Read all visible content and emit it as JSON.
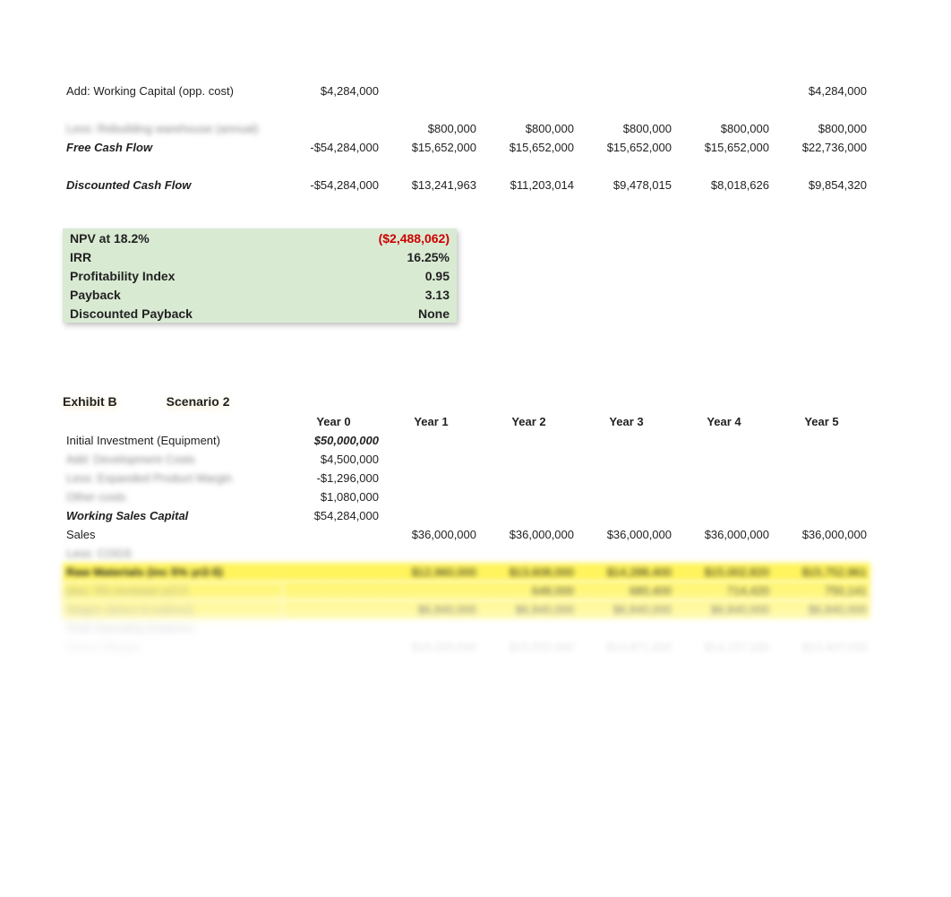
{
  "top_table": {
    "rows": [
      {
        "label": "",
        "cells": [
          "",
          "",
          "",
          "",
          "",
          ""
        ]
      },
      {
        "label": "Add: Working Capital (opp. cost)",
        "cells": [
          "$4,284,000",
          "",
          "",
          "",
          "",
          "$4,284,000"
        ]
      },
      {
        "label": "",
        "cells": [
          "",
          "",
          "",
          "",
          "",
          ""
        ]
      },
      {
        "label": "Less: Rebuilding warehouse (annual)",
        "blurred_label": true,
        "cells": [
          "",
          "$800,000",
          "$800,000",
          "$800,000",
          "$800,000",
          "$800,000"
        ]
      },
      {
        "label": "Free Cash Flow",
        "bold_italic": true,
        "cells": [
          "-$54,284,000",
          "$15,652,000",
          "$15,652,000",
          "$15,652,000",
          "$15,652,000",
          "$22,736,000"
        ]
      },
      {
        "label": "",
        "cells": [
          "",
          "",
          "",
          "",
          "",
          ""
        ]
      },
      {
        "label": "Discounted Cash Flow",
        "bold_italic": true,
        "cells": [
          "-$54,284,000",
          "$13,241,963",
          "$11,203,014",
          "$9,478,015",
          "$8,018,626",
          "$9,854,320"
        ]
      }
    ]
  },
  "metrics": [
    {
      "label": "NPV at 18.2%",
      "value": "($2,488,062)",
      "red": true
    },
    {
      "label": "IRR",
      "value": "16.25%"
    },
    {
      "label": "Profitability Index",
      "value": "0.95"
    },
    {
      "label": "Payback",
      "value": "3.13"
    },
    {
      "label": "Discounted Payback",
      "value": "None"
    }
  ],
  "exhibit": {
    "label1": "Exhibit B",
    "label2": "Scenario 2"
  },
  "year_headers": [
    "Year 0",
    "Year 1",
    "Year 2",
    "Year 3",
    "Year 4",
    "Year 5"
  ],
  "scenario2": {
    "rows": [
      {
        "label": "Initial Investment (Equipment)",
        "cells": [
          "$50,000,000",
          "",
          "",
          "",
          "",
          ""
        ],
        "y0_bold_italic": true
      },
      {
        "label": "Add: Development Costs",
        "blurred_label": true,
        "cells": [
          "$4,500,000",
          "",
          "",
          "",
          "",
          ""
        ]
      },
      {
        "label": "Less: Expanded Product Margin",
        "blurred_label": true,
        "cells": [
          "-$1,296,000",
          "",
          "",
          "",
          "",
          ""
        ]
      },
      {
        "label": "Other costs",
        "blurred_label": true,
        "cells": [
          "$1,080,000",
          "",
          "",
          "",
          "",
          ""
        ]
      },
      {
        "label": "Working Sales Capital",
        "bold_italic": true,
        "cells": [
          "$54,284,000",
          "",
          "",
          "",
          "",
          ""
        ]
      },
      {
        "label": "Sales",
        "cells": [
          "",
          "$36,000,000",
          "$36,000,000",
          "$36,000,000",
          "$36,000,000",
          "$36,000,000"
        ]
      },
      {
        "label": "Less: COGS",
        "blurred_label": true,
        "cells": [
          "",
          "",
          "",
          "",
          "",
          ""
        ]
      },
      {
        "label": "Raw Materials (inc 5% yr2-5)",
        "bold": true,
        "highlight": true,
        "cells": [
          "",
          "$12,960,000",
          "$13,608,000",
          "$14,288,400",
          "$15,002,820",
          "$15,752,961"
        ]
      },
      {
        "label": "plus: 5% increase yr2-5",
        "blurred_label": true,
        "highlight": true,
        "cells": [
          "",
          "",
          "648,000",
          "680,400",
          "714,420",
          "750,141"
        ]
      },
      {
        "label": "Wages (direct & indirect)",
        "blurred_label": true,
        "highlight": true,
        "cells": [
          "",
          "$6,840,000",
          "$6,840,000",
          "$6,840,000",
          "$6,840,000",
          "$6,840,000"
        ]
      },
      {
        "label": "Total Operating Expense",
        "blurred_label": true,
        "cells": [
          "",
          "",
          "",
          "",
          "",
          ""
        ]
      },
      {
        "label": "Gross Margin",
        "bold_italic": true,
        "blurred_label": true,
        "cells": [
          "",
          "$16,200,000",
          "$15,552,000",
          "$14,871,600",
          "$14,157,180",
          "$13,407,039"
        ]
      }
    ]
  },
  "colors": {
    "metrics_bg": "#d9ead3",
    "highlight": "#fff45c",
    "neg": "#cc0000"
  }
}
